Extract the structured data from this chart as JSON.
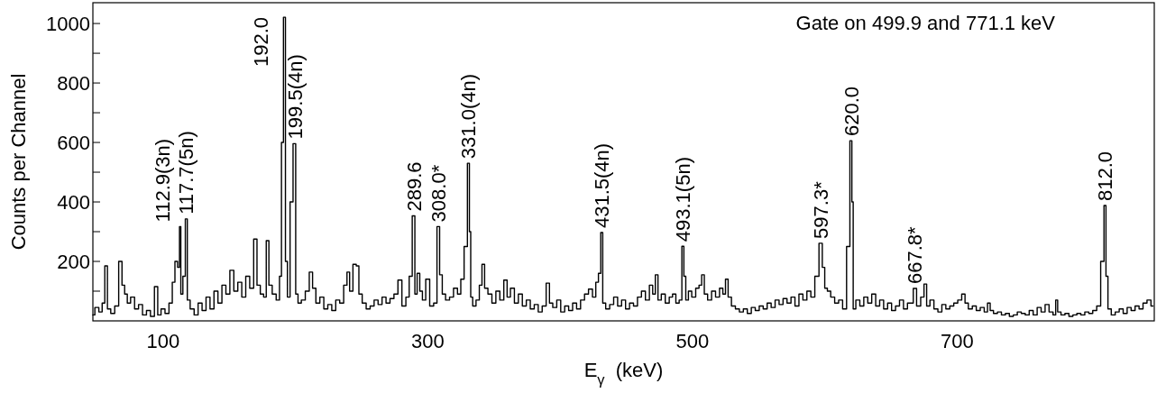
{
  "chart_data": {
    "type": "step",
    "xlabel": "E$_{γ}$  (keV)",
    "ylabel": "Counts per Channel",
    "x": [
      47,
      50,
      53,
      55,
      57,
      59,
      62,
      65,
      68,
      70,
      72,
      74,
      77,
      80,
      83,
      86,
      89,
      92,
      95,
      97,
      100,
      103,
      106,
      108,
      110,
      112,
      112.9,
      114,
      116,
      117.7,
      119,
      122,
      125,
      128,
      131,
      134,
      137,
      140,
      143,
      146,
      149,
      152,
      155,
      158,
      161,
      164,
      167,
      170,
      172,
      175,
      177,
      179,
      181,
      184,
      187,
      189,
      190,
      192,
      193,
      195,
      197,
      199.5,
      201,
      203,
      206,
      209,
      212,
      214,
      217,
      220,
      223,
      226,
      229,
      232,
      235,
      238,
      240,
      242,
      245,
      247,
      249,
      252,
      255,
      258,
      261,
      264,
      267,
      270,
      273,
      276,
      279,
      282,
      285,
      287,
      289.6,
      291,
      293,
      295,
      297,
      300,
      303,
      306,
      308,
      310,
      312,
      315,
      318,
      321,
      324,
      326,
      329,
      331,
      332,
      333,
      335,
      338,
      340,
      342,
      344,
      347,
      350,
      353,
      356,
      359,
      361,
      364,
      367,
      370,
      373,
      376,
      379,
      382,
      385,
      388,
      391,
      393,
      396,
      399,
      402,
      405,
      408,
      411,
      414,
      417,
      420,
      423,
      426,
      428,
      430,
      431.5,
      433,
      436,
      439,
      442,
      445,
      448,
      451,
      454,
      457,
      460,
      463,
      466,
      469,
      471,
      473,
      475,
      478,
      481,
      484,
      486,
      489,
      491,
      493.1,
      494,
      496,
      498,
      501,
      504,
      506,
      508,
      510,
      513,
      516,
      519,
      522,
      524,
      526,
      528,
      531,
      534,
      537,
      540,
      543,
      546,
      549,
      552,
      555,
      558,
      561,
      564,
      567,
      570,
      573,
      576,
      579,
      582,
      585,
      588,
      591,
      594,
      597.3,
      599,
      601,
      603,
      606,
      609,
      612,
      615,
      618,
      620,
      621,
      622,
      625,
      628,
      631,
      634,
      637,
      640,
      643,
      646,
      649,
      652,
      655,
      658,
      661,
      664,
      666,
      667.8,
      671,
      674,
      676,
      678,
      681,
      684,
      687,
      690,
      693,
      696,
      699,
      702,
      705,
      707,
      710,
      713,
      716,
      719,
      722,
      724,
      726,
      729,
      732,
      735,
      738,
      741,
      744,
      747,
      750,
      753,
      756,
      759,
      762,
      765,
      768,
      771,
      774,
      775,
      777,
      780,
      783,
      786,
      789,
      792,
      795,
      798,
      801,
      804,
      807,
      810,
      812,
      813,
      815,
      818,
      821,
      824,
      827,
      830,
      833,
      836,
      839,
      842,
      845,
      848
    ],
    "series": [
      {
        "color": "#000000",
        "values": [
          20,
          45,
          30,
          60,
          185,
          40,
          25,
          50,
          200,
          120,
          90,
          60,
          80,
          40,
          55,
          20,
          35,
          15,
          115,
          20,
          40,
          25,
          60,
          130,
          200,
          180,
          317,
          90,
          150,
          343,
          70,
          40,
          20,
          60,
          35,
          80,
          40,
          100,
          60,
          120,
          90,
          170,
          100,
          130,
          80,
          150,
          110,
          275,
          120,
          90,
          80,
          270,
          120,
          90,
          70,
          150,
          600,
          1021,
          200,
          80,
          400,
          596,
          90,
          60,
          70,
          100,
          164,
          110,
          60,
          80,
          40,
          55,
          35,
          70,
          60,
          120,
          164,
          100,
          190,
          185,
          90,
          60,
          40,
          50,
          70,
          55,
          80,
          60,
          75,
          90,
          137,
          50,
          80,
          150,
          353,
          90,
          160,
          100,
          70,
          140,
          50,
          60,
          317,
          155,
          90,
          70,
          80,
          110,
          90,
          140,
          250,
          530,
          300,
          80,
          50,
          70,
          120,
          190,
          110,
          90,
          60,
          100,
          70,
          137,
          80,
          110,
          60,
          90,
          50,
          70,
          40,
          55,
          30,
          50,
          127,
          60,
          45,
          70,
          30,
          50,
          35,
          60,
          40,
          70,
          90,
          107,
          80,
          130,
          160,
          297,
          60,
          40,
          55,
          80,
          50,
          70,
          40,
          60,
          50,
          80,
          100,
          70,
          120,
          90,
          155,
          70,
          90,
          60,
          80,
          90,
          60,
          70,
          251,
          150,
          70,
          100,
          80,
          110,
          120,
          155,
          90,
          70,
          100,
          80,
          110,
          90,
          140,
          80,
          50,
          40,
          30,
          40,
          25,
          45,
          35,
          50,
          40,
          60,
          45,
          70,
          55,
          75,
          60,
          80,
          50,
          90,
          70,
          100,
          80,
          150,
          261,
          180,
          110,
          100,
          80,
          60,
          70,
          40,
          250,
          606,
          400,
          40,
          70,
          50,
          80,
          60,
          90,
          50,
          70,
          40,
          60,
          35,
          50,
          70,
          40,
          60,
          60,
          109,
          50,
          80,
          124,
          50,
          70,
          40,
          30,
          55,
          40,
          50,
          60,
          70,
          90,
          60,
          40,
          50,
          35,
          45,
          30,
          60,
          35,
          25,
          30,
          20,
          25,
          15,
          20,
          30,
          25,
          20,
          35,
          20,
          45,
          30,
          55,
          30,
          20,
          70,
          30,
          20,
          25,
          15,
          20,
          25,
          20,
          30,
          25,
          35,
          50,
          200,
          388,
          150,
          40,
          20,
          30,
          40,
          25,
          45,
          35,
          50,
          40,
          60,
          70,
          50
        ]
      }
    ],
    "xlim": [
      47,
      849
    ],
    "xticks": [
      100,
      300,
      500,
      700
    ],
    "ylim": [
      0,
      1070
    ],
    "yticks": [
      {
        "value": 100,
        "label": null
      },
      200,
      {
        "value": 300,
        "label": null
      },
      400,
      {
        "value": 500,
        "label": null
      },
      600,
      {
        "value": 700,
        "label": null
      },
      800,
      {
        "value": 900,
        "label": null
      },
      1000
    ],
    "grid": false,
    "annotations": [
      {
        "text": "112.9(3n)",
        "x": 112.9,
        "y": 317
      },
      {
        "text": "117.7(5n)",
        "x": 117.7,
        "y": 343
      },
      {
        "text": "192.0",
        "x": 192,
        "y": 1021
      },
      {
        "text": "199.5(4n)",
        "x": 199.5,
        "y": 596
      },
      {
        "text": "289.6",
        "x": 289.6,
        "y": 353
      },
      {
        "text": "308.0*",
        "x": 308,
        "y": 317
      },
      {
        "text": "331.0(4n)",
        "x": 331,
        "y": 530
      },
      {
        "text": "431.5(4n)",
        "x": 431.5,
        "y": 297
      },
      {
        "text": "493.1(5n)",
        "x": 493.1,
        "y": 251
      },
      {
        "text": "597.3*",
        "x": 597.3,
        "y": 261
      },
      {
        "text": "620.0",
        "x": 620,
        "y": 606
      },
      {
        "text": "667.8*",
        "x": 667.8,
        "y": 109
      },
      {
        "text": "812.0",
        "x": 812,
        "y": 388
      },
      "Gate on 499.9 and 771.1 keV"
    ]
  }
}
